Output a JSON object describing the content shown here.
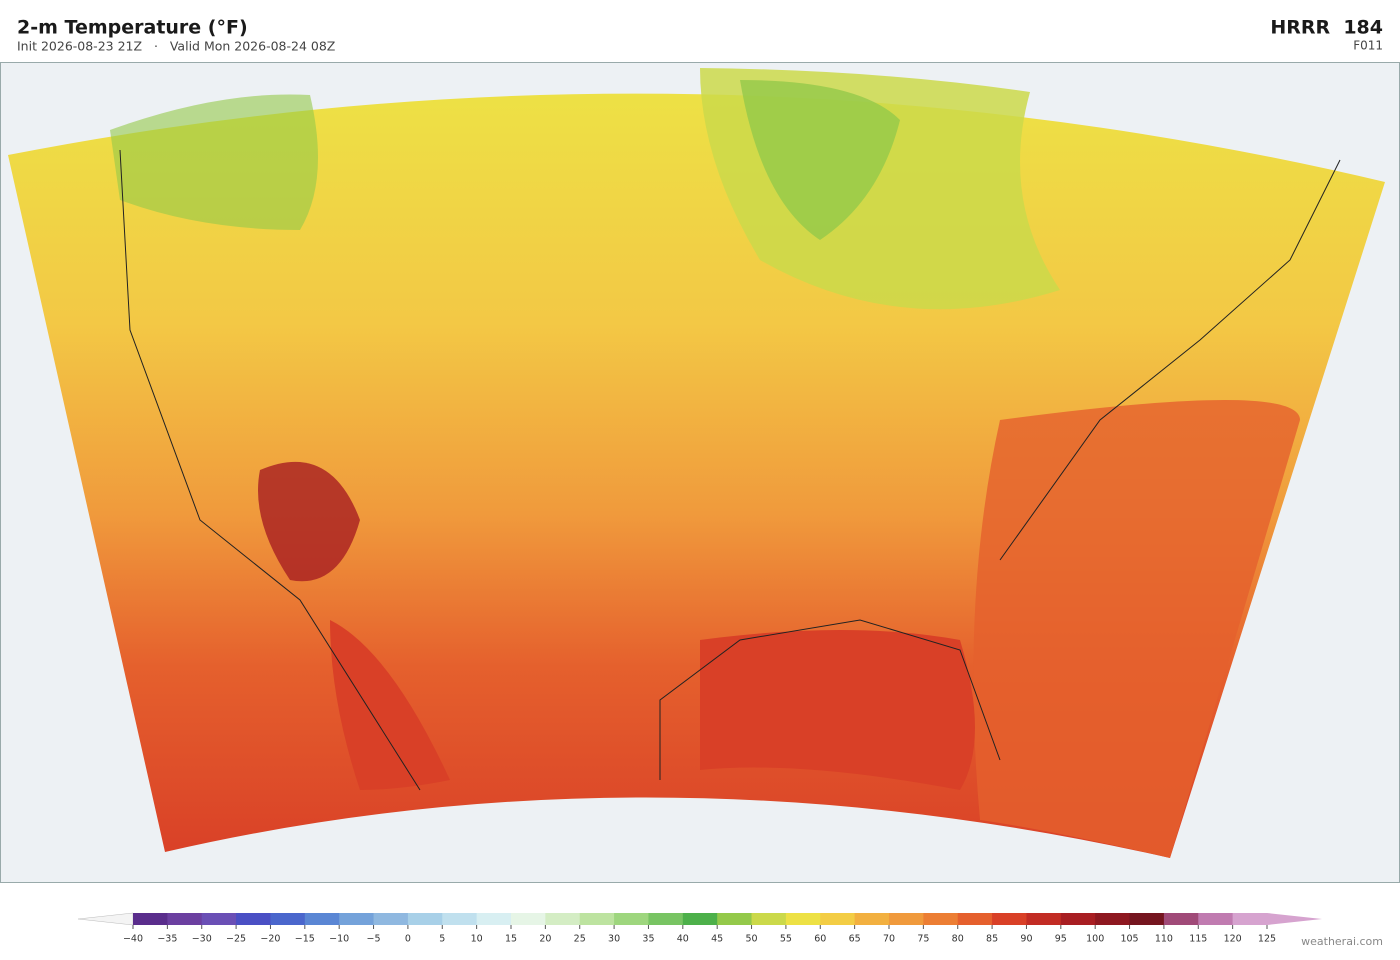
{
  "header": {
    "title": "2-m Temperature  (°F)",
    "subtitle": "Init 2026-08-23 21Z   ·   Valid Mon 2026-08-24 08Z",
    "model": "HRRR  184",
    "forecast_hour": "F011"
  },
  "colorbar": {
    "ticks": [
      "−40",
      "−35",
      "−30",
      "−25",
      "−20",
      "−15",
      "−10",
      "−5",
      "0",
      "5",
      "10",
      "15",
      "20",
      "25",
      "30",
      "35",
      "40",
      "45",
      "50",
      "55",
      "60",
      "65",
      "70",
      "75",
      "80",
      "85",
      "90",
      "95",
      "100",
      "105",
      "110",
      "115",
      "120",
      "125"
    ],
    "colors": [
      "#5a2d8c",
      "#6b3fa0",
      "#6a4fb5",
      "#4a4fc4",
      "#4a66cc",
      "#5a86d4",
      "#74a2da",
      "#8fb8e0",
      "#a8d0e8",
      "#c0e0ee",
      "#d8eff2",
      "#e6f5e6",
      "#d4edc4",
      "#bde3a0",
      "#9ed67e",
      "#78c463",
      "#4db04a",
      "#94c94a",
      "#cbd94a",
      "#ede145",
      "#f3cd45",
      "#f2b040",
      "#f09a3c",
      "#ec7e34",
      "#e5602d",
      "#d94027",
      "#c22c24",
      "#a81e22",
      "#8e1820",
      "#75151f",
      "#a04a78",
      "#c07bb0",
      "#d6a3cf"
    ]
  },
  "footer": {
    "credit": "weatherai.com"
  }
}
